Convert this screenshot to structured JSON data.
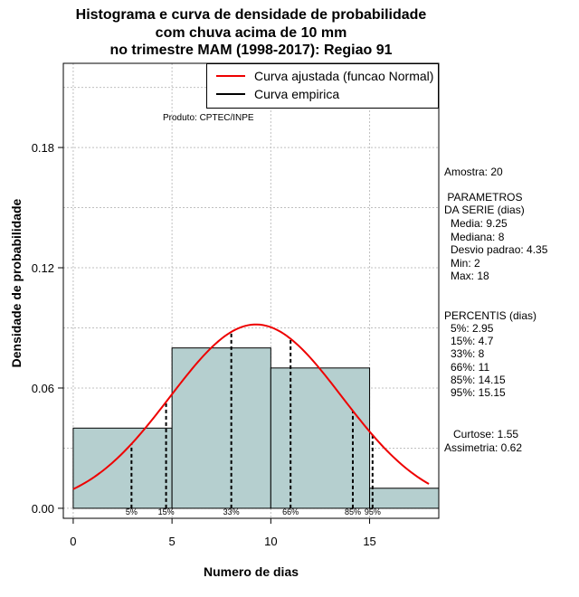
{
  "title": {
    "line1": "Histograma e curva de densidade de probabilidade",
    "line2": "com chuva acima de 10 mm",
    "line3": "no trimestre MAM (1998-2017): Regiao 91"
  },
  "product": "Produto: CPTEC/INPE",
  "legend": {
    "fitted": "Curva ajustada (funcao Normal)",
    "empirical": "Curva empirica"
  },
  "side": {
    "amostra": "Amostra: 20",
    "params_title_1": " PARAMETROS",
    "params_title_2": "DA SERIE (dias)",
    "media": "Media: 9.25",
    "mediana": "Mediana: 8",
    "desvio": "Desvio padrao: 4.35",
    "min": "Min: 2",
    "max": "Max: 18",
    "percentis_title": "PERCENTIS (dias)",
    "p5": "5%: 2.95",
    "p15": "15%: 4.7",
    "p33": "33%: 8",
    "p66": "66%: 11",
    "p85": "85%: 14.15",
    "p95": "95%: 15.15",
    "curtose": "Curtose: 1.55",
    "assimetria": "Assimetria: 0.62"
  },
  "colors": {
    "bar_fill": "#b5cfcf",
    "curve": "#ee0000",
    "grid": "#c0c0c0"
  },
  "chart_data": {
    "type": "bar",
    "title": "Histograma e curva de densidade de probabilidade com chuva acima de 10 mm no trimestre MAM (1998-2017): Regiao 91",
    "xlabel": "Numero de dias",
    "ylabel": "Densidade de probabilidade",
    "xlim": [
      -0.5,
      18.5
    ],
    "ylim": [
      -0.005,
      0.222
    ],
    "x_ticks": [
      0,
      5,
      10,
      15
    ],
    "y_ticks": [
      0.0,
      0.06,
      0.12,
      0.18
    ],
    "y_tick_labels": [
      "0.00",
      "0.06",
      "0.12",
      "0.18"
    ],
    "grid": true,
    "legend_position": "top-right",
    "bins": [
      {
        "x0": 0,
        "x1": 5,
        "density": 0.04
      },
      {
        "x0": 5,
        "x1": 10,
        "density": 0.08
      },
      {
        "x0": 10,
        "x1": 15,
        "density": 0.07
      },
      {
        "x0": 15,
        "x1": 18.5,
        "density": 0.01
      }
    ],
    "normal_fit": {
      "mean": 9.25,
      "sd": 4.35,
      "x_from": 0,
      "x_to": 18
    },
    "percentiles": [
      {
        "label": "5%",
        "x": 2.95
      },
      {
        "label": "15%",
        "x": 4.7
      },
      {
        "label": "33%",
        "x": 8
      },
      {
        "label": "66%",
        "x": 11
      },
      {
        "label": "85%",
        "x": 14.15
      },
      {
        "label": "95%",
        "x": 15.15
      }
    ]
  }
}
